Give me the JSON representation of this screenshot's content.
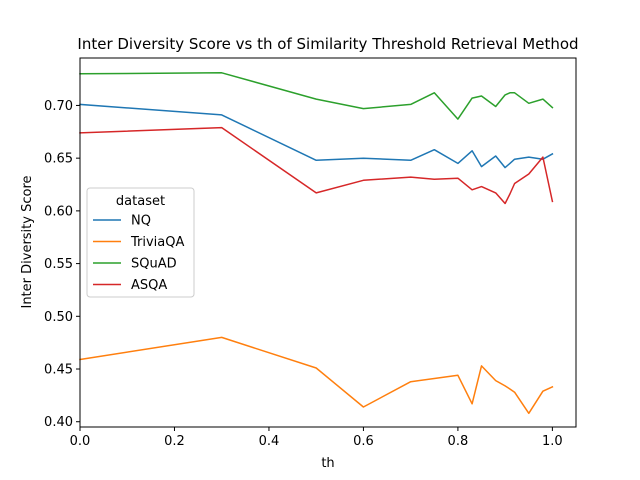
{
  "chart_data": {
    "type": "line",
    "title": "Inter Diversity Score vs th of Similarity Threshold Retrieval Method",
    "xlabel": "th",
    "ylabel": "Inter Diversity Score",
    "xlim": [
      0.0,
      1.05
    ],
    "ylim": [
      0.395,
      0.745
    ],
    "xticks": [
      0.0,
      0.2,
      0.4,
      0.6,
      0.8,
      1.0
    ],
    "xtick_labels": [
      "0.0",
      "0.2",
      "0.4",
      "0.6",
      "0.8",
      "1.0"
    ],
    "yticks": [
      0.4,
      0.45,
      0.5,
      0.55,
      0.6,
      0.65,
      0.7
    ],
    "ytick_labels": [
      "0.40",
      "0.45",
      "0.50",
      "0.55",
      "0.60",
      "0.65",
      "0.70"
    ],
    "grid": false,
    "legend": {
      "title": "dataset",
      "placement": "center-left"
    },
    "x": [
      0.0,
      0.3,
      0.5,
      0.6,
      0.7,
      0.75,
      0.8,
      0.83,
      0.85,
      0.88,
      0.9,
      0.91,
      0.92,
      0.95,
      0.98,
      1.0
    ],
    "series": [
      {
        "name": "NQ",
        "color": "#1f77b4",
        "values": [
          0.701,
          0.691,
          0.648,
          0.65,
          0.648,
          0.658,
          0.645,
          0.657,
          0.642,
          0.652,
          0.641,
          0.645,
          0.649,
          0.651,
          0.649,
          0.654
        ]
      },
      {
        "name": "TriviaQA",
        "color": "#ff7f0e",
        "values": [
          0.459,
          0.48,
          0.451,
          0.414,
          0.438,
          0.441,
          0.444,
          0.417,
          0.453,
          0.439,
          0.434,
          0.431,
          0.428,
          0.408,
          0.429,
          0.433
        ]
      },
      {
        "name": "SQuAD",
        "color": "#2ca02c",
        "values": [
          0.73,
          0.731,
          0.706,
          0.697,
          0.701,
          0.712,
          0.687,
          0.707,
          0.709,
          0.699,
          0.71,
          0.712,
          0.712,
          0.702,
          0.706,
          0.698
        ]
      },
      {
        "name": "ASQA",
        "color": "#d62728",
        "values": [
          0.674,
          0.679,
          0.617,
          0.629,
          0.632,
          0.63,
          0.631,
          0.62,
          0.623,
          0.617,
          0.607,
          0.616,
          0.626,
          0.635,
          0.651,
          0.609
        ]
      }
    ]
  }
}
